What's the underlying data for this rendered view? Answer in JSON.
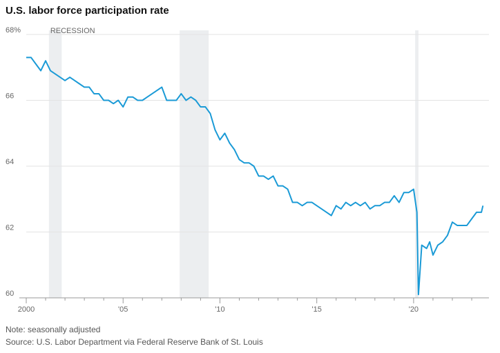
{
  "chart_data": {
    "type": "line",
    "title": "U.S. labor force participation rate",
    "annotations": [
      "RECESSION"
    ],
    "notes": [
      "Note: seasonally adjusted",
      "Source: U.S. Labor Department via Federal Reserve Bank of St. Louis"
    ],
    "recessions": [
      [
        2001.17,
        2001.83
      ],
      [
        2007.92,
        2009.42
      ],
      [
        2020.08,
        2020.25
      ]
    ],
    "recession_color": "#eceef0",
    "x": [
      2000.0,
      2000.25,
      2000.5,
      2000.75,
      2001.0,
      2001.25,
      2001.5,
      2001.75,
      2002.0,
      2002.25,
      2002.5,
      2002.75,
      2003.0,
      2003.25,
      2003.5,
      2003.75,
      2004.0,
      2004.25,
      2004.5,
      2004.75,
      2005.0,
      2005.25,
      2005.5,
      2005.75,
      2006.0,
      2006.25,
      2006.5,
      2006.75,
      2007.0,
      2007.25,
      2007.5,
      2007.75,
      2008.0,
      2008.25,
      2008.5,
      2008.75,
      2009.0,
      2009.25,
      2009.5,
      2009.75,
      2010.0,
      2010.25,
      2010.5,
      2010.75,
      2011.0,
      2011.25,
      2011.5,
      2011.75,
      2012.0,
      2012.25,
      2012.5,
      2012.75,
      2013.0,
      2013.25,
      2013.5,
      2013.75,
      2014.0,
      2014.25,
      2014.5,
      2014.75,
      2015.0,
      2015.25,
      2015.5,
      2015.75,
      2016.0,
      2016.25,
      2016.5,
      2016.75,
      2017.0,
      2017.25,
      2017.5,
      2017.75,
      2018.0,
      2018.25,
      2018.5,
      2018.75,
      2019.0,
      2019.25,
      2019.5,
      2019.75,
      2020.0,
      2020.17,
      2020.25,
      2020.42,
      2020.67,
      2020.83,
      2021.0,
      2021.25,
      2021.5,
      2021.75,
      2022.0,
      2022.25,
      2022.5,
      2022.75,
      2023.0,
      2023.25,
      2023.5,
      2023.58
    ],
    "series": [
      {
        "name": "Labor force participation rate",
        "color": "#1a9ad6",
        "values": [
          67.3,
          67.3,
          67.1,
          66.9,
          67.2,
          66.9,
          66.8,
          66.7,
          66.6,
          66.7,
          66.6,
          66.5,
          66.4,
          66.4,
          66.2,
          66.2,
          66.0,
          66.0,
          65.9,
          66.0,
          65.8,
          66.1,
          66.1,
          66.0,
          66.0,
          66.1,
          66.2,
          66.3,
          66.4,
          66.0,
          66.0,
          66.0,
          66.2,
          66.0,
          66.1,
          66.0,
          65.8,
          65.8,
          65.6,
          65.1,
          64.8,
          65.0,
          64.7,
          64.5,
          64.2,
          64.1,
          64.1,
          64.0,
          63.7,
          63.7,
          63.6,
          63.7,
          63.4,
          63.4,
          63.3,
          62.9,
          62.9,
          62.8,
          62.9,
          62.9,
          62.8,
          62.7,
          62.6,
          62.5,
          62.8,
          62.7,
          62.9,
          62.8,
          62.9,
          62.8,
          62.9,
          62.7,
          62.8,
          62.8,
          62.9,
          62.9,
          63.1,
          62.9,
          63.2,
          63.2,
          63.3,
          62.6,
          60.1,
          61.6,
          61.5,
          61.7,
          61.3,
          61.6,
          61.7,
          61.9,
          62.3,
          62.2,
          62.2,
          62.2,
          62.4,
          62.6,
          62.6,
          62.8
        ]
      }
    ],
    "xlim": [
      1998.93,
      2023.89
    ],
    "xticks": [
      {
        "value": 2000,
        "label": "2000"
      },
      {
        "value": 2005,
        "label": "'05"
      },
      {
        "value": 2010,
        "label": "'10"
      },
      {
        "value": 2015,
        "label": "'15"
      },
      {
        "value": 2020,
        "label": "'20"
      }
    ],
    "xminorticks": [
      2001,
      2002,
      2003,
      2004,
      2006,
      2007,
      2008,
      2009,
      2011,
      2012,
      2013,
      2014,
      2016,
      2017,
      2018,
      2019,
      2021,
      2022,
      2023
    ],
    "ylim": [
      60,
      68
    ],
    "yticks": [
      {
        "value": 68,
        "label": "68%"
      },
      66,
      64,
      62,
      60
    ],
    "grid": true
  }
}
